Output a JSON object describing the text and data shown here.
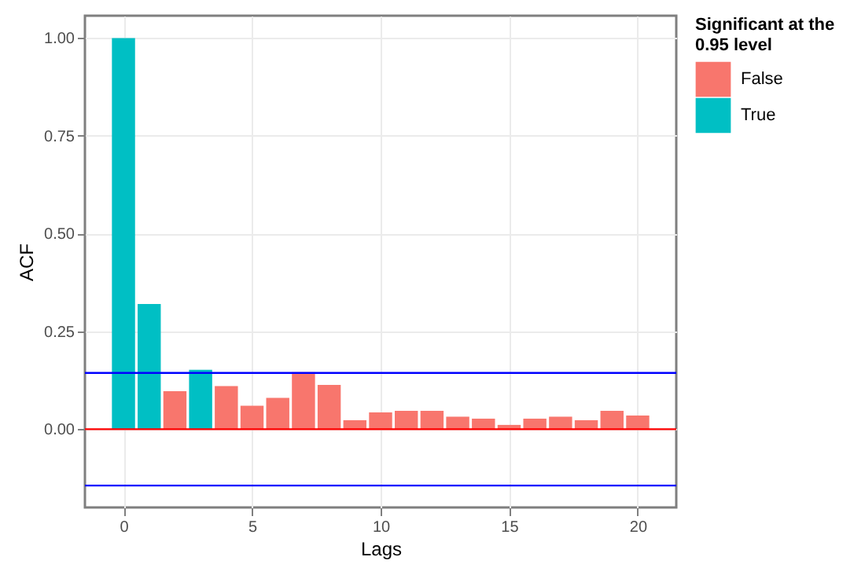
{
  "chart_data": {
    "type": "bar",
    "xlabel": "Lags",
    "ylabel": "ACF",
    "legend_title": "Significant at the 0.95 level",
    "x": [
      0,
      1,
      2,
      3,
      4,
      5,
      6,
      7,
      8,
      9,
      10,
      11,
      12,
      13,
      14,
      15,
      16,
      17,
      18,
      19,
      20
    ],
    "series": [
      {
        "name": "False",
        "color": "#f8766d",
        "values": [
          null,
          null,
          0.097,
          null,
          0.11,
          0.06,
          0.08,
          0.146,
          0.113,
          0.023,
          0.043,
          0.047,
          0.047,
          0.032,
          0.027,
          0.011,
          0.027,
          0.032,
          0.023,
          0.047,
          0.035
        ]
      },
      {
        "name": "True",
        "color": "#00bfc4",
        "values": [
          1.0,
          0.32,
          null,
          0.152,
          null,
          null,
          null,
          null,
          null,
          null,
          null,
          null,
          null,
          null,
          null,
          null,
          null,
          null,
          null,
          null,
          null
        ]
      }
    ],
    "xlim": [
      -1.5,
      21.5
    ],
    "xticks": [
      0,
      5,
      10,
      15,
      20
    ],
    "ylim": [
      -0.2,
      1.057
    ],
    "yticks": [
      {
        "value": 0,
        "label": "0.00"
      },
      {
        "value": 0.25,
        "label": "0.25"
      },
      {
        "value": 0.5,
        "label": "0.50"
      },
      {
        "value": 0.75,
        "label": "0.75"
      },
      {
        "value": 1,
        "label": "1.00"
      }
    ],
    "ref_lines": [
      {
        "axis": "y",
        "value": 0,
        "color": "#ff0000"
      },
      {
        "axis": "y",
        "value": 0.144,
        "color": "#0000ff"
      },
      {
        "axis": "y",
        "value": -0.144,
        "color": "#0000ff"
      }
    ],
    "grid": true,
    "legend": "right"
  }
}
